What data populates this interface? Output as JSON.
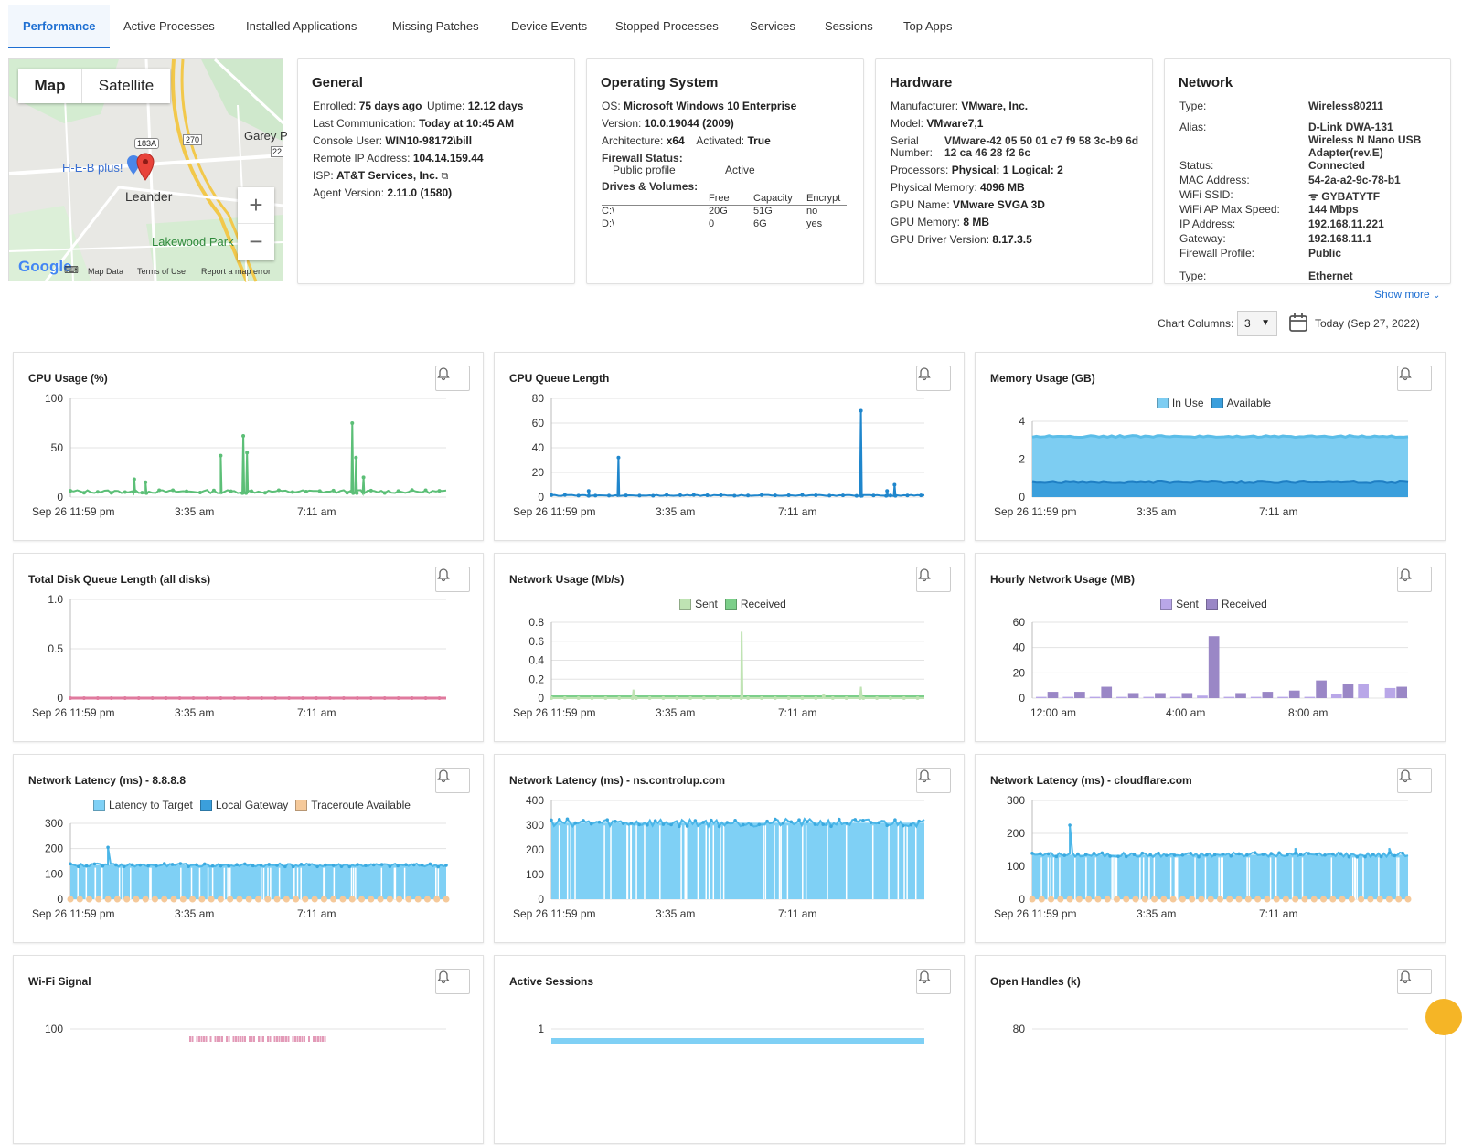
{
  "tabs": [
    "Performance",
    "Active Processes",
    "Installed Applications",
    "Missing Patches",
    "Device Events",
    "Stopped Processes",
    "Services",
    "Sessions",
    "Top Apps"
  ],
  "map": {
    "btn_map": "Map",
    "btn_satellite": "Satellite",
    "zoom_in": "+",
    "zoom_out": "−",
    "labels": [
      "H-E-B plus!",
      "Leander",
      "Lakewood Park",
      "Garey P",
      "183A",
      "270",
      "22"
    ],
    "google": "Google",
    "footer": [
      "Map Data",
      "Terms of Use",
      "Report a map error"
    ]
  },
  "general": {
    "title": "General",
    "enrolled_k": "Enrolled:",
    "enrolled_v": "75 days ago",
    "uptime_k": "Uptime:",
    "uptime_v": "12.12 days",
    "lastcomm_k": "Last Communication:",
    "lastcomm_v": "Today at 10:45 AM",
    "console_k": "Console User:",
    "console_v": "WIN10-98172\\bill",
    "ip_k": "Remote IP Address:",
    "ip_v": "104.14.159.44",
    "isp_k": "ISP:",
    "isp_v": "AT&T Services, Inc.",
    "agent_k": "Agent Version:",
    "agent_v": "2.11.0 (1580)"
  },
  "os": {
    "title": "Operating System",
    "os_k": "OS:",
    "os_v": "Microsoft Windows 10 Enterprise",
    "ver_k": "Version:",
    "ver_v": "10.0.19044 (2009)",
    "arch_k": "Architecture:",
    "arch_v": "x64",
    "act_k": "Activated:",
    "act_v": "True",
    "fw_k": "Firewall Status:",
    "fw_profile": "Public profile",
    "fw_state": "Active",
    "drives_k": "Drives & Volumes:",
    "drive_headers": [
      "Free",
      "Capacity",
      "Encrypt"
    ],
    "drives": [
      [
        "C:\\",
        "20G",
        "51G",
        "no"
      ],
      [
        "D:\\",
        "0",
        "6G",
        "yes"
      ]
    ]
  },
  "hardware": {
    "title": "Hardware",
    "man_k": "Manufacturer:",
    "man_v": "VMware, Inc.",
    "model_k": "Model:",
    "model_v": "VMware7,1",
    "serial_k1": "Serial",
    "serial_k2": "Number:",
    "serial_v1": "VMware-42 05 50 01 c7 f9 58 3c-b9 6d",
    "serial_v2": "12 ca 46 28 f2 6c",
    "proc_k": "Processors:",
    "proc_v": "Physical: 1  Logical: 2",
    "mem_k": "Physical Memory:",
    "mem_v": "4096 MB",
    "gpu_k": "GPU Name:",
    "gpu_v": "VMware SVGA 3D",
    "gmem_k": "GPU Memory:",
    "gmem_v": "8 MB",
    "gdrv_k": "GPU Driver Version:",
    "gdrv_v": "8.17.3.5"
  },
  "network": {
    "title": "Network",
    "rows": [
      [
        "Type:",
        "Wireless80211"
      ],
      [
        "Alias:",
        "D-Link DWA-131"
      ],
      [
        "",
        "Wireless N Nano USB"
      ],
      [
        "",
        "Adapter(rev.E)"
      ],
      [
        "Status:",
        "Connected"
      ],
      [
        "MAC Address:",
        "54-2a-a2-9c-78-b1"
      ],
      [
        "WiFi SSID:",
        "ᯤ GYBATYTF"
      ],
      [
        "WiFi AP Max Speed:",
        "144 Mbps"
      ],
      [
        "IP Address:",
        "192.168.11.221"
      ],
      [
        "Gateway:",
        "192.168.11.1"
      ],
      [
        "Firewall Profile:",
        "Public"
      ],
      [
        "Type:",
        "Ethernet"
      ]
    ],
    "show_more": "Show more"
  },
  "controls": {
    "chart_columns_label": "Chart Columns:",
    "chart_columns_value": "3",
    "date": "Today (Sep 27, 2022)"
  },
  "charts": [
    {
      "title": "CPU Usage (%)",
      "yticks": [
        "100",
        "50",
        "0"
      ],
      "xticks": [
        "Sep 26 11:59 pm",
        "3:35 am",
        "7:11 am"
      ],
      "legend": []
    },
    {
      "title": "CPU Queue Length",
      "yticks": [
        "80",
        "60",
        "40",
        "20",
        "0"
      ],
      "xticks": [
        "Sep 26 11:59 pm",
        "3:35 am",
        "7:11 am"
      ],
      "legend": []
    },
    {
      "title": "Memory Usage (GB)",
      "yticks": [
        "4",
        "2",
        "0"
      ],
      "xticks": [
        "Sep 26 11:59 pm",
        "3:35 am",
        "7:11 am"
      ],
      "legend": [
        "In Use",
        "Available"
      ]
    },
    {
      "title": "Total Disk Queue Length (all disks)",
      "yticks": [
        "1.0",
        "0.5",
        "0"
      ],
      "xticks": [
        "Sep 26 11:59 pm",
        "3:35 am",
        "7:11 am"
      ],
      "legend": []
    },
    {
      "title": "Network Usage (Mb/s)",
      "yticks": [
        "0.8",
        "0.6",
        "0.4",
        "0.2",
        "0"
      ],
      "xticks": [
        "Sep 26 11:59 pm",
        "3:35 am",
        "7:11 am"
      ],
      "legend": [
        "Sent",
        "Received"
      ]
    },
    {
      "title": "Hourly Network Usage (MB)",
      "yticks": [
        "60",
        "40",
        "20",
        "0"
      ],
      "xticks": [
        "12:00 am",
        "4:00 am",
        "8:00 am"
      ],
      "legend": [
        "Sent",
        "Received"
      ]
    },
    {
      "title": "Network Latency (ms) - 8.8.8.8",
      "yticks": [
        "300",
        "200",
        "100",
        "0"
      ],
      "xticks": [
        "Sep 26 11:59 pm",
        "3:35 am",
        "7:11 am"
      ],
      "legend": [
        "Latency to Target",
        "Local Gateway",
        "Traceroute Available"
      ]
    },
    {
      "title": "Network Latency (ms) - ns.controlup.com",
      "yticks": [
        "400",
        "300",
        "200",
        "100",
        "0"
      ],
      "xticks": [
        "Sep 26 11:59 pm",
        "3:35 am",
        "7:11 am"
      ],
      "legend": []
    },
    {
      "title": "Network Latency (ms) - cloudflare.com",
      "yticks": [
        "300",
        "200",
        "100",
        "0"
      ],
      "xticks": [
        "Sep 26 11:59 pm",
        "3:35 am",
        "7:11 am"
      ],
      "legend": []
    },
    {
      "title": "Wi-Fi Signal",
      "yticks": [
        "100"
      ],
      "xticks": [],
      "legend": []
    },
    {
      "title": "Active Sessions",
      "yticks": [
        "1"
      ],
      "xticks": [],
      "legend": []
    },
    {
      "title": "Open Handles (k)",
      "yticks": [
        "80"
      ],
      "xticks": [],
      "legend": []
    }
  ],
  "colors": {
    "accent": "#1e6fd2",
    "cpu": "#5cbf77",
    "queue": "#1f86cc",
    "mem_inuse": "#7dcdf2",
    "mem_avail": "#3b9fdc",
    "disk": "#e07a9e",
    "net_sent": "#bfe3b3",
    "net_recv": "#7ccf8a",
    "hourly_sent": "#b9a7e8",
    "hourly_recv": "#9a87c6",
    "latency": "#7fd0f5",
    "traceroute": "#f5c99a",
    "wifi": "#e39bb8"
  },
  "chart_data": [
    {
      "type": "line",
      "title": "CPU Usage (%)",
      "ylim": [
        0,
        100
      ],
      "series": [
        {
          "name": "CPU",
          "baseline": 4,
          "spikes": [
            [
              0.17,
              18
            ],
            [
              0.2,
              15
            ],
            [
              0.4,
              42
            ],
            [
              0.46,
              62
            ],
            [
              0.47,
              45
            ],
            [
              0.75,
              75
            ],
            [
              0.76,
              40
            ],
            [
              0.78,
              20
            ]
          ]
        }
      ]
    },
    {
      "type": "line",
      "title": "CPU Queue Length",
      "ylim": [
        0,
        80
      ],
      "series": [
        {
          "name": "Queue",
          "baseline": 1,
          "spikes": [
            [
              0.18,
              32
            ],
            [
              0.1,
              5
            ],
            [
              0.83,
              70
            ],
            [
              0.92,
              10
            ],
            [
              0.9,
              5
            ]
          ]
        }
      ]
    },
    {
      "type": "area",
      "title": "Memory Usage (GB)",
      "ylim": [
        0,
        4
      ],
      "series": [
        {
          "name": "In Use",
          "value": 3.2
        },
        {
          "name": "Available",
          "value": 0.8
        }
      ]
    },
    {
      "type": "line",
      "title": "Total Disk Queue Length (all disks)",
      "ylim": [
        0,
        1
      ],
      "series": [
        {
          "name": "Disk",
          "baseline": 0,
          "spikes": []
        }
      ]
    },
    {
      "type": "line",
      "title": "Network Usage (Mb/s)",
      "ylim": [
        0,
        0.8
      ],
      "series": [
        {
          "name": "Received",
          "baseline": 0,
          "spikes": [
            [
              0.22,
              0.09
            ],
            [
              0.51,
              0.7
            ],
            [
              0.73,
              0.02
            ],
            [
              0.83,
              0.12
            ]
          ]
        }
      ]
    },
    {
      "type": "bar",
      "title": "Hourly Network Usage (MB)",
      "ylim": [
        0,
        60
      ],
      "series": [
        {
          "name": "Sent",
          "values": [
            1,
            1,
            1,
            1,
            1,
            1,
            2,
            1,
            1,
            1,
            1,
            3,
            11,
            8
          ]
        },
        {
          "name": "Received",
          "values": [
            5,
            5,
            9,
            4,
            4,
            4,
            49,
            4,
            5,
            6,
            14,
            11,
            0,
            9
          ]
        }
      ]
    },
    {
      "type": "area",
      "title": "Network Latency (ms) - 8.8.8.8",
      "ylim": [
        0,
        300
      ],
      "series": [
        {
          "name": "Latency to Target",
          "value": 135,
          "spikes": [
            [
              0.1,
              205
            ]
          ]
        },
        {
          "name": "Traceroute Available",
          "value": 0
        }
      ]
    },
    {
      "type": "area",
      "title": "Network Latency (ms) - ns.controlup.com",
      "ylim": [
        0,
        400
      ],
      "series": [
        {
          "name": "Latency",
          "value": 310,
          "spikes": []
        }
      ]
    },
    {
      "type": "area",
      "title": "Network Latency (ms) - cloudflare.com",
      "ylim": [
        0,
        300
      ],
      "series": [
        {
          "name": "Latency",
          "value": 135,
          "spikes": [
            [
              0.1,
              225
            ],
            [
              0.7,
              155
            ],
            [
              0.95,
              155
            ]
          ]
        },
        {
          "name": "Traceroute Available",
          "value": 0
        }
      ]
    },
    {
      "type": "line",
      "title": "Wi-Fi Signal",
      "ylim": [
        0,
        100
      ],
      "series": [
        {
          "name": "Signal",
          "value": 95
        }
      ]
    },
    {
      "type": "area",
      "title": "Active Sessions",
      "ylim": [
        0,
        1
      ],
      "series": [
        {
          "name": "Sessions",
          "value": 1
        }
      ]
    },
    {
      "type": "line",
      "title": "Open Handles (k)",
      "ylim": [
        0,
        80
      ],
      "series": []
    }
  ]
}
